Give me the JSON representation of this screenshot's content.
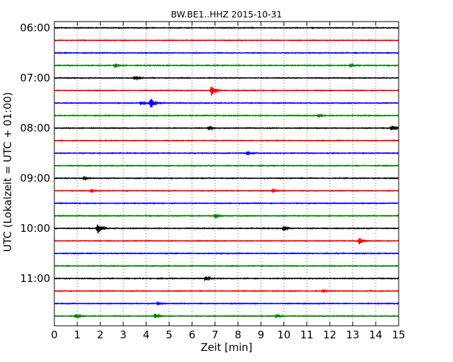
{
  "chart_data": {
    "type": "line",
    "title": "BW.BE1..HHZ 2015-10-31",
    "xlabel": "Zeit  [min]",
    "ylabel": "UTC (Lokalzeit = UTC + 01:00)",
    "xlim": [
      0,
      15
    ],
    "x_ticks": [
      "0",
      "1",
      "2",
      "3",
      "4",
      "5",
      "6",
      "7",
      "8",
      "9",
      "10",
      "11",
      "12",
      "13",
      "14",
      "15"
    ],
    "y_ticks": [
      "06:00",
      "07:00",
      "08:00",
      "09:00",
      "10:00",
      "11:00"
    ],
    "grid": "vertical-dotted",
    "trace_interval_minutes": 15,
    "start_time": "06:00",
    "colors": [
      "#000000",
      "#ff0000",
      "#0000ff",
      "#008000"
    ],
    "noise_amplitude": 0.06,
    "events": [
      {
        "trace": 3,
        "time_min": 2.65,
        "amp": 0.35
      },
      {
        "trace": 3,
        "time_min": 12.9,
        "amp": 0.25
      },
      {
        "trace": 4,
        "time_min": 3.5,
        "amp": 0.4
      },
      {
        "trace": 5,
        "time_min": 6.85,
        "amp": 1.3
      },
      {
        "trace": 6,
        "time_min": 4.2,
        "amp": 0.95
      },
      {
        "trace": 6,
        "time_min": 3.8,
        "amp": 0.35
      },
      {
        "trace": 7,
        "time_min": 11.5,
        "amp": 0.2
      },
      {
        "trace": 8,
        "time_min": 6.75,
        "amp": 0.3
      },
      {
        "trace": 8,
        "time_min": 14.7,
        "amp": 0.55
      },
      {
        "trace": 10,
        "time_min": 8.4,
        "amp": 0.25
      },
      {
        "trace": 12,
        "time_min": 1.3,
        "amp": 0.25
      },
      {
        "trace": 13,
        "time_min": 1.6,
        "amp": 0.25
      },
      {
        "trace": 13,
        "time_min": 9.5,
        "amp": 0.2
      },
      {
        "trace": 15,
        "time_min": 7.0,
        "amp": 0.35
      },
      {
        "trace": 16,
        "time_min": 1.9,
        "amp": 0.95
      },
      {
        "trace": 16,
        "time_min": 10.0,
        "amp": 0.45
      },
      {
        "trace": 17,
        "time_min": 13.3,
        "amp": 0.6
      },
      {
        "trace": 20,
        "time_min": 6.6,
        "amp": 0.5
      },
      {
        "trace": 21,
        "time_min": 11.7,
        "amp": 0.15
      },
      {
        "trace": 22,
        "time_min": 4.5,
        "amp": 0.15
      },
      {
        "trace": 23,
        "time_min": 0.95,
        "amp": 0.5
      },
      {
        "trace": 23,
        "time_min": 4.4,
        "amp": 0.45
      },
      {
        "trace": 23,
        "time_min": 9.7,
        "amp": 0.25
      }
    ]
  }
}
